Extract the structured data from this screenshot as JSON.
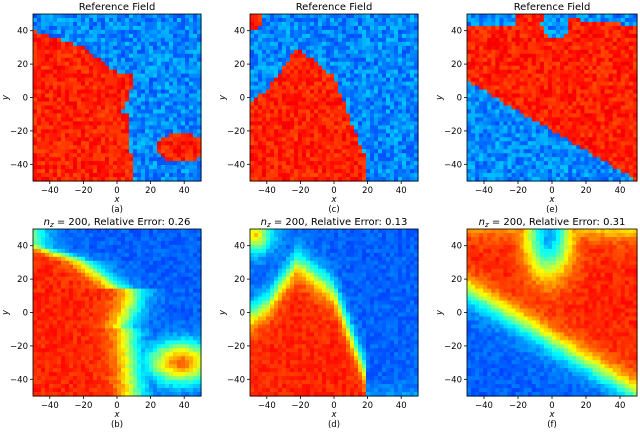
{
  "chart_data": [
    {
      "type": "heatmap",
      "panel": "(a)",
      "title": "Reference Field",
      "xlabel": "x",
      "ylabel": "y",
      "xlim": [
        -50,
        50
      ],
      "ylim": [
        -50,
        50
      ],
      "xticks": [
        "−40",
        "−20",
        "0",
        "20",
        "40"
      ],
      "yticks": [
        "40",
        "20",
        "0",
        "−20",
        "−40"
      ],
      "colormap": "jet",
      "high_color": "#f0801a",
      "low_color": "#2f6fdc",
      "field": "binary; high facies left and lower-left, boundary near x≈0 curving to x≈10 at mid-height; small high patch lower-right near (40,−30)"
    },
    {
      "type": "heatmap",
      "panel": "(c)",
      "title": "Reference Field",
      "xlabel": "x",
      "ylabel": "y",
      "xlim": [
        -50,
        50
      ],
      "ylim": [
        -50,
        50
      ],
      "xticks": [
        "−40",
        "−20",
        "0",
        "20",
        "40"
      ],
      "yticks": [
        "40",
        "20",
        "0",
        "−20",
        "−40"
      ],
      "colormap": "jet",
      "high_color": "#f0801a",
      "low_color": "#2f6fdc",
      "field": "binary; high mound in lower-left peaking near (−22,28), extending to x≈20 at bottom"
    },
    {
      "type": "heatmap",
      "panel": "(e)",
      "title": "Reference Field",
      "xlabel": "x",
      "ylabel": "y",
      "xlim": [
        -50,
        50
      ],
      "ylim": [
        -50,
        50
      ],
      "xticks": [
        "−40",
        "−20",
        "0",
        "20",
        "40"
      ],
      "yticks": [
        "40",
        "20",
        "0",
        "−20",
        "−40"
      ],
      "colormap": "jet",
      "high_color": "#f0801a",
      "low_color": "#2f6fdc",
      "field": "binary; high diagonal band from upper-left to lower-right, low region lower-left and notch at top near x≈0"
    },
    {
      "type": "heatmap",
      "panel": "(b)",
      "title": "n_z = 200, Relative Error: 0.26",
      "title_parts": {
        "var": "n",
        "sub": "z",
        "rest": " = 200, Relative Error: 0.26"
      },
      "relative_error": 0.26,
      "n_z": 200,
      "xlabel": "x",
      "ylabel": "y",
      "xlim": [
        -50,
        50
      ],
      "ylim": [
        -50,
        50
      ],
      "xticks": [
        "−40",
        "−20",
        "0",
        "20",
        "40"
      ],
      "yticks": [
        "40",
        "20",
        "0",
        "−20",
        "−40"
      ],
      "colormap": "jet",
      "field": "smoothed reconstruction of (a)"
    },
    {
      "type": "heatmap",
      "panel": "(d)",
      "title": "n_z = 200, Relative Error: 0.13",
      "title_parts": {
        "var": "n",
        "sub": "z",
        "rest": " = 200, Relative Error: 0.13"
      },
      "relative_error": 0.13,
      "n_z": 200,
      "xlabel": "x",
      "ylabel": "y",
      "xlim": [
        -50,
        50
      ],
      "ylim": [
        -50,
        50
      ],
      "xticks": [
        "−40",
        "−20",
        "0",
        "20",
        "40"
      ],
      "yticks": [
        "40",
        "20",
        "0",
        "−20",
        "−40"
      ],
      "colormap": "jet",
      "field": "smoothed reconstruction of (c)"
    },
    {
      "type": "heatmap",
      "panel": "(f)",
      "title": "n_z = 200, Relative Error: 0.31",
      "title_parts": {
        "var": "n",
        "sub": "z",
        "rest": " = 200, Relative Error: 0.31"
      },
      "relative_error": 0.31,
      "n_z": 200,
      "xlabel": "x",
      "ylabel": "y",
      "xlim": [
        -50,
        50
      ],
      "ylim": [
        -50,
        50
      ],
      "xticks": [
        "−40",
        "−20",
        "0",
        "20",
        "40"
      ],
      "yticks": [
        "40",
        "20",
        "0",
        "−20",
        "−40"
      ],
      "colormap": "jet",
      "field": "smoothed reconstruction of (e)"
    }
  ]
}
